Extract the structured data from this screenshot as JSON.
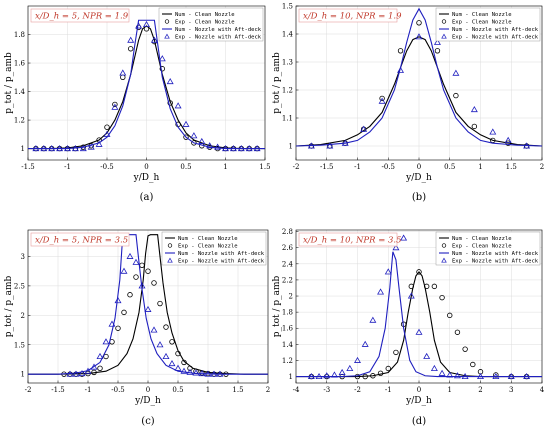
{
  "chart_data": [
    {
      "type": "line",
      "panel_label": "(a)",
      "annotation": "x/D_h = 5, NPR = 1.9",
      "xlabel": "y/D_h",
      "ylabel": "p_tot / p_amb",
      "xlim": [
        -1.5,
        1.5
      ],
      "ylim": [
        0.92,
        2.0
      ],
      "xticks": [
        -1.5,
        -1,
        -0.5,
        0,
        0.5,
        1,
        1.5
      ],
      "xtick_labels": [
        "-1.5",
        "-1",
        "-0.5",
        "0",
        "0.5",
        "1",
        "1.5"
      ],
      "yticks": [
        1,
        1.2,
        1.4,
        1.6,
        1.8
      ],
      "ytick_labels": [
        "1",
        "1.2",
        "1.4",
        "1.6",
        "1.8"
      ],
      "grid": true,
      "legend_position": "top-right",
      "series": [
        {
          "name": "Num   - Clean Nozzle",
          "kind": "line",
          "color": "#000000",
          "x": [
            -1.5,
            -1.2,
            -1.0,
            -0.8,
            -0.6,
            -0.5,
            -0.4,
            -0.3,
            -0.2,
            -0.15,
            -0.1,
            -0.05,
            0.0,
            0.05,
            0.1,
            0.15,
            0.2,
            0.3,
            0.4,
            0.5,
            0.6,
            0.8,
            1.0,
            1.2,
            1.5
          ],
          "y": [
            1.0,
            1.0,
            1.005,
            1.02,
            1.06,
            1.11,
            1.2,
            1.33,
            1.52,
            1.64,
            1.76,
            1.84,
            1.86,
            1.84,
            1.76,
            1.64,
            1.52,
            1.33,
            1.2,
            1.11,
            1.06,
            1.02,
            1.005,
            1.0,
            1.0
          ]
        },
        {
          "name": "Exp   - Clean Nozzle",
          "kind": "scatter",
          "marker": "circle",
          "color": "#000000",
          "x": [
            -1.4,
            -1.3,
            -1.2,
            -1.1,
            -1.0,
            -0.9,
            -0.8,
            -0.7,
            -0.6,
            -0.5,
            -0.4,
            -0.3,
            -0.2,
            -0.1,
            0.0,
            0.1,
            0.2,
            0.3,
            0.4,
            0.5,
            0.6,
            0.7,
            0.8,
            0.9,
            1.0,
            1.1,
            1.2,
            1.3,
            1.4
          ],
          "y": [
            1.0,
            1.0,
            1.0,
            1.0,
            1.0,
            1.0,
            1.01,
            1.02,
            1.06,
            1.15,
            1.31,
            1.5,
            1.7,
            1.85,
            1.84,
            1.75,
            1.56,
            1.32,
            1.17,
            1.08,
            1.04,
            1.02,
            1.01,
            1.0,
            1.0,
            1.0,
            1.0,
            1.0,
            1.0
          ]
        },
        {
          "name": "Num   - Nozzle with Aft-deck",
          "kind": "line",
          "color": "#1f1fbf",
          "x": [
            -1.5,
            -1.2,
            -1.0,
            -0.8,
            -0.6,
            -0.5,
            -0.4,
            -0.3,
            -0.2,
            -0.15,
            -0.1,
            -0.05,
            0.05,
            0.1,
            0.15,
            0.2,
            0.3,
            0.4,
            0.5,
            0.6,
            0.8,
            1.0,
            1.2,
            1.5
          ],
          "y": [
            1.0,
            1.0,
            1.0,
            1.01,
            1.04,
            1.08,
            1.16,
            1.3,
            1.52,
            1.72,
            1.9,
            1.9,
            1.9,
            1.9,
            1.7,
            1.5,
            1.28,
            1.15,
            1.08,
            1.04,
            1.01,
            1.0,
            1.0,
            1.0
          ]
        },
        {
          "name": "Exp   - Nozzle with Aft-deck",
          "kind": "scatter",
          "marker": "triangle",
          "color": "#1f1fbf",
          "x": [
            -1.4,
            -1.3,
            -1.2,
            -1.1,
            -1.0,
            -0.9,
            -0.8,
            -0.7,
            -0.6,
            -0.5,
            -0.4,
            -0.3,
            -0.2,
            -0.1,
            0.0,
            0.1,
            0.2,
            0.3,
            0.4,
            0.5,
            0.6,
            0.7,
            0.8,
            0.9,
            1.0,
            1.1,
            1.2,
            1.3,
            1.4
          ],
          "y": [
            1.0,
            1.0,
            1.0,
            1.0,
            1.0,
            1.0,
            1.0,
            1.01,
            1.03,
            1.1,
            1.29,
            1.53,
            1.76,
            1.86,
            1.87,
            1.76,
            1.63,
            1.47,
            1.3,
            1.17,
            1.09,
            1.05,
            1.02,
            1.01,
            1.0,
            1.0,
            1.0,
            1.0,
            1.0
          ]
        }
      ]
    },
    {
      "type": "line",
      "panel_label": "(b)",
      "annotation": "x/D_h = 10, NPR = 1.9",
      "xlabel": "y/D_h",
      "ylabel": "p_tot / p_amb",
      "xlim": [
        -2,
        2
      ],
      "ylim": [
        0.95,
        1.5
      ],
      "xticks": [
        -2,
        -1.5,
        -1,
        -0.5,
        0,
        0.5,
        1,
        1.5,
        2
      ],
      "xtick_labels": [
        "-2",
        "-1.5",
        "-1",
        "-0.5",
        "0",
        "0.5",
        "1",
        "1.5",
        "2"
      ],
      "yticks": [
        1,
        1.1,
        1.2,
        1.3,
        1.4,
        1.5
      ],
      "ytick_labels": [
        "1",
        "1.1",
        "1.2",
        "1.3",
        "1.4",
        "1.5"
      ],
      "grid": true,
      "legend_position": "top-right",
      "series": [
        {
          "name": "Num   - Clean Nozzle",
          "kind": "line",
          "color": "#000000",
          "x": [
            -2.0,
            -1.6,
            -1.2,
            -1.0,
            -0.8,
            -0.6,
            -0.4,
            -0.3,
            -0.2,
            -0.1,
            0.0,
            0.1,
            0.2,
            0.3,
            0.4,
            0.6,
            0.8,
            1.0,
            1.2,
            1.6,
            2.0
          ],
          "y": [
            1.0,
            1.005,
            1.02,
            1.04,
            1.07,
            1.12,
            1.22,
            1.28,
            1.34,
            1.38,
            1.39,
            1.38,
            1.34,
            1.28,
            1.22,
            1.12,
            1.07,
            1.04,
            1.02,
            1.005,
            1.0
          ]
        },
        {
          "name": "Exp   - Clean Nozzle",
          "kind": "scatter",
          "marker": "circle",
          "color": "#000000",
          "x": [
            -1.75,
            -1.45,
            -1.2,
            -0.9,
            -0.6,
            -0.3,
            0.0,
            0.3,
            0.6,
            0.9,
            1.2,
            1.45,
            1.75
          ],
          "y": [
            1.0,
            1.0,
            1.01,
            1.06,
            1.17,
            1.34,
            1.44,
            1.34,
            1.18,
            1.07,
            1.02,
            1.01,
            1.0
          ]
        },
        {
          "name": "Num   - Nozzle with Aft-deck",
          "kind": "line",
          "color": "#1f1fbf",
          "x": [
            -2.0,
            -1.6,
            -1.2,
            -1.0,
            -0.8,
            -0.6,
            -0.4,
            -0.3,
            -0.2,
            -0.1,
            0.0,
            0.1,
            0.2,
            0.3,
            0.4,
            0.6,
            0.8,
            1.0,
            1.2,
            1.6,
            2.0
          ],
          "y": [
            1.0,
            1.003,
            1.01,
            1.02,
            1.05,
            1.1,
            1.2,
            1.28,
            1.37,
            1.45,
            1.49,
            1.45,
            1.37,
            1.28,
            1.2,
            1.1,
            1.05,
            1.02,
            1.01,
            1.003,
            1.0
          ]
        },
        {
          "name": "Exp   - Nozzle with Aft-deck",
          "kind": "scatter",
          "marker": "triangle",
          "color": "#1f1fbf",
          "x": [
            -1.75,
            -1.45,
            -1.2,
            -0.9,
            -0.6,
            -0.3,
            0.0,
            0.3,
            0.6,
            0.9,
            1.2,
            1.45,
            1.75
          ],
          "y": [
            1.0,
            1.0,
            1.01,
            1.06,
            1.16,
            1.27,
            1.39,
            1.37,
            1.26,
            1.13,
            1.05,
            1.02,
            1.0
          ]
        }
      ]
    },
    {
      "type": "line",
      "panel_label": "(c)",
      "annotation": "x/D_h = 5, NPR = 3.5",
      "xlabel": "y/D_h",
      "ylabel": "p_tot / p_amb",
      "xlim": [
        -2,
        2
      ],
      "ylim": [
        0.85,
        3.45
      ],
      "xticks": [
        -2,
        -1.5,
        -1,
        -0.5,
        0,
        0.5,
        1,
        1.5,
        2
      ],
      "xtick_labels": [
        "-2",
        "-1.5",
        "-1",
        "-0.5",
        "0",
        "0.5",
        "1",
        "1.5",
        "2"
      ],
      "yticks": [
        1,
        1.5,
        2,
        2.5,
        3
      ],
      "ytick_labels": [
        "1",
        "1.5",
        "2",
        "2.5",
        "3"
      ],
      "grid": true,
      "legend_position": "top-right",
      "series": [
        {
          "name": "Num   - Clean Nozzle",
          "kind": "line",
          "color": "#000000",
          "x": [
            -2.0,
            -1.5,
            -1.0,
            -0.7,
            -0.5,
            -0.35,
            -0.25,
            -0.15,
            -0.08,
            -0.04,
            0.0,
            0.04,
            0.16,
            0.2,
            0.25,
            0.32,
            0.4,
            0.5,
            0.6,
            0.75,
            1.0,
            1.3,
            1.6,
            2.0
          ],
          "y": [
            1.0,
            1.0,
            1.01,
            1.05,
            1.15,
            1.35,
            1.6,
            2.05,
            2.6,
            3.05,
            3.35,
            3.37,
            3.37,
            3.0,
            2.55,
            2.05,
            1.7,
            1.4,
            1.22,
            1.1,
            1.03,
            1.01,
            1.0,
            1.0
          ]
        },
        {
          "name": "Exp   - Clean Nozzle",
          "kind": "scatter",
          "marker": "circle",
          "color": "#000000",
          "x": [
            -1.4,
            -1.3,
            -1.2,
            -1.1,
            -1.0,
            -0.9,
            -0.8,
            -0.7,
            -0.6,
            -0.5,
            -0.4,
            -0.3,
            -0.2,
            -0.1,
            0.0,
            0.1,
            0.2,
            0.3,
            0.4,
            0.5,
            0.6,
            0.7,
            0.8,
            0.9,
            1.0,
            1.1,
            1.2,
            1.3
          ],
          "y": [
            1.0,
            1.0,
            1.0,
            1.0,
            1.01,
            1.03,
            1.1,
            1.3,
            1.55,
            1.78,
            2.05,
            2.35,
            2.65,
            2.85,
            2.75,
            2.55,
            2.2,
            1.8,
            1.55,
            1.35,
            1.2,
            1.1,
            1.05,
            1.02,
            1.01,
            1.0,
            1.0,
            1.0
          ]
        },
        {
          "name": "Num   - Nozzle with Aft-deck",
          "kind": "line",
          "color": "#1f1fbf",
          "x": [
            -2.0,
            -1.5,
            -1.2,
            -1.0,
            -0.8,
            -0.65,
            -0.55,
            -0.47,
            -0.42,
            -0.2,
            -0.15,
            -0.1,
            -0.03,
            0.05,
            0.15,
            0.3,
            0.5,
            0.8,
            1.2,
            2.0
          ],
          "y": [
            1.0,
            1.0,
            1.02,
            1.06,
            1.2,
            1.5,
            1.95,
            2.6,
            3.37,
            3.37,
            2.9,
            2.45,
            1.95,
            1.6,
            1.35,
            1.15,
            1.05,
            1.01,
            1.0,
            1.0
          ]
        },
        {
          "name": "Exp   - Nozzle with Aft-deck",
          "kind": "scatter",
          "marker": "triangle",
          "color": "#1f1fbf",
          "x": [
            -1.3,
            -1.2,
            -1.1,
            -1.0,
            -0.9,
            -0.8,
            -0.7,
            -0.6,
            -0.5,
            -0.4,
            -0.3,
            -0.2,
            -0.1,
            0.0,
            0.1,
            0.2,
            0.3,
            0.4,
            0.5,
            0.6,
            0.7,
            0.8,
            0.9,
            1.0,
            1.1,
            1.2
          ],
          "y": [
            1.0,
            1.0,
            1.01,
            1.05,
            1.12,
            1.3,
            1.55,
            1.85,
            2.25,
            2.75,
            3.0,
            2.9,
            2.5,
            2.1,
            1.75,
            1.5,
            1.3,
            1.18,
            1.1,
            1.05,
            1.03,
            1.02,
            1.01,
            1.0,
            1.0,
            1.0
          ]
        }
      ]
    },
    {
      "type": "line",
      "panel_label": "(d)",
      "annotation": "x/D_h = 10, NPR = 3.5",
      "xlabel": "y/D_h",
      "ylabel": "p_tot / p_amb",
      "xlim": [
        -4,
        4
      ],
      "ylim": [
        0.92,
        2.82
      ],
      "xticks": [
        -4,
        -3,
        -2,
        -1,
        0,
        1,
        2,
        3,
        4
      ],
      "xtick_labels": [
        "-4",
        "-3",
        "-2",
        "-1",
        "0",
        "1",
        "2",
        "3",
        "4"
      ],
      "yticks": [
        1,
        1.2,
        1.4,
        1.6,
        1.8,
        2,
        2.2,
        2.4,
        2.6,
        2.8
      ],
      "ytick_labels": [
        "1",
        "1.2",
        "1.4",
        "1.6",
        "1.8",
        "2",
        "2.2",
        "2.4",
        "2.6",
        "2.8"
      ],
      "grid": true,
      "legend_position": "top-right",
      "series": [
        {
          "name": "Num   - Clean Nozzle",
          "kind": "line",
          "color": "#000000",
          "x": [
            -4.0,
            -3.0,
            -2.0,
            -1.5,
            -1.0,
            -0.7,
            -0.5,
            -0.35,
            -0.2,
            -0.1,
            0.0,
            0.1,
            0.2,
            0.35,
            0.5,
            0.7,
            1.0,
            1.5,
            2.0,
            3.0,
            4.0
          ],
          "y": [
            1.0,
            1.0,
            1.0,
            1.01,
            1.05,
            1.18,
            1.45,
            1.8,
            2.1,
            2.25,
            2.3,
            2.25,
            2.1,
            1.8,
            1.45,
            1.18,
            1.05,
            1.01,
            1.0,
            1.0,
            1.0
          ]
        },
        {
          "name": "Exp   - Clean Nozzle",
          "kind": "scatter",
          "marker": "circle",
          "color": "#000000",
          "x": [
            -3.5,
            -3.0,
            -2.5,
            -2.0,
            -1.75,
            -1.5,
            -1.25,
            -1.0,
            -0.75,
            -0.5,
            -0.25,
            0.0,
            0.25,
            0.5,
            0.75,
            1.0,
            1.25,
            1.5,
            1.75,
            2.0,
            2.5,
            3.0,
            3.5
          ],
          "y": [
            1.0,
            1.0,
            1.0,
            1.0,
            1.0,
            1.01,
            1.04,
            1.1,
            1.3,
            1.65,
            2.12,
            2.3,
            2.12,
            2.12,
            1.98,
            1.76,
            1.55,
            1.34,
            1.15,
            1.06,
            1.02,
            1.0,
            1.0
          ]
        },
        {
          "name": "Num   - Nozzle with Aft-deck",
          "kind": "line",
          "color": "#1f1fbf",
          "x": [
            -4.0,
            -3.0,
            -2.5,
            -2.0,
            -1.6,
            -1.3,
            -1.1,
            -0.95,
            -0.85,
            -0.75,
            -0.65,
            -0.5,
            -0.3,
            -0.1,
            0.2,
            0.6,
            1.0,
            2.0,
            4.0
          ],
          "y": [
            1.0,
            1.0,
            1.0,
            1.01,
            1.06,
            1.25,
            1.6,
            2.1,
            2.55,
            2.45,
            2.1,
            1.6,
            1.2,
            1.06,
            1.01,
            1.0,
            1.0,
            1.0,
            1.0
          ]
        },
        {
          "name": "Exp   - Nozzle with Aft-deck",
          "kind": "scatter",
          "marker": "triangle",
          "color": "#1f1fbf",
          "x": [
            -3.5,
            -3.25,
            -3.0,
            -2.75,
            -2.5,
            -2.25,
            -2.0,
            -1.75,
            -1.5,
            -1.25,
            -1.0,
            -0.75,
            -0.5,
            -0.25,
            0.0,
            0.25,
            0.5,
            0.75,
            1.0,
            1.25,
            1.5,
            2.0,
            2.5,
            3.0,
            3.5
          ],
          "y": [
            1.0,
            1.0,
            1.01,
            1.02,
            1.05,
            1.1,
            1.2,
            1.4,
            1.7,
            2.05,
            2.3,
            2.6,
            2.72,
            2.0,
            1.55,
            1.25,
            1.1,
            1.04,
            1.02,
            1.01,
            1.0,
            1.0,
            1.0,
            1.0,
            1.0
          ]
        }
      ]
    }
  ]
}
